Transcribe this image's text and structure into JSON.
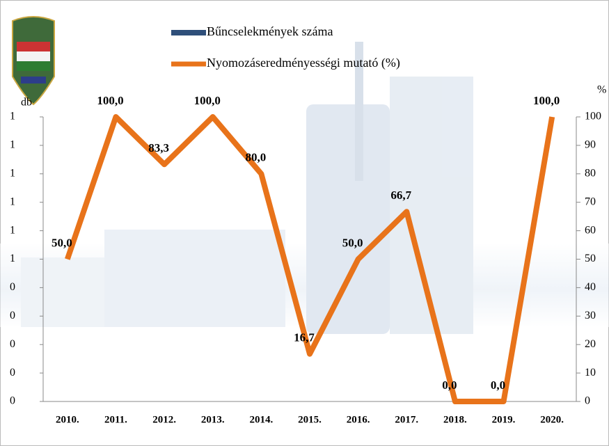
{
  "chart_data": {
    "type": "bar-line",
    "y_axis_label": "db",
    "y2_axis_label": "%",
    "categories": [
      "2010.",
      "2011.",
      "2012.",
      "2013.",
      "2014.",
      "2015.",
      "2016.",
      "2017.",
      "2018.",
      "2019.",
      "2020."
    ],
    "series": [
      {
        "name": "Bűncselekmények száma",
        "type": "bar",
        "color": "#2f4f7a",
        "values": [
          0,
          0,
          0,
          0,
          0,
          0,
          0,
          0,
          0,
          0,
          0
        ]
      },
      {
        "name": "Nyomozáseredményességi mutató (%)",
        "type": "line",
        "axis": "y2",
        "color": "#e8731a",
        "values": [
          50,
          100,
          83.3,
          100,
          80,
          16.7,
          50,
          66.7,
          0,
          0,
          100
        ],
        "value_labels": [
          "50,0",
          "100,0",
          "83,3",
          "100,0",
          "80,0",
          "16,7",
          "50,0",
          "66,7",
          "0,0",
          "0,0",
          "100,0"
        ]
      }
    ],
    "ylim": [
      0,
      1
    ],
    "yticks": [
      0,
      {
        "value": 0.1,
        "label": "0"
      },
      {
        "value": 0.2,
        "label": "0"
      },
      {
        "value": 0.3,
        "label": "0"
      },
      {
        "value": 0.4,
        "label": "0"
      },
      {
        "value": 0.5,
        "label": "1"
      },
      {
        "value": 0.6,
        "label": "1"
      },
      {
        "value": 0.7,
        "label": "1"
      },
      {
        "value": 0.8,
        "label": "1"
      },
      {
        "value": 0.9,
        "label": "1"
      },
      1
    ],
    "y2lim": [
      0,
      100
    ],
    "y2ticks": [
      0,
      10,
      20,
      30,
      40,
      50,
      60,
      70,
      80,
      90,
      100
    ]
  }
}
